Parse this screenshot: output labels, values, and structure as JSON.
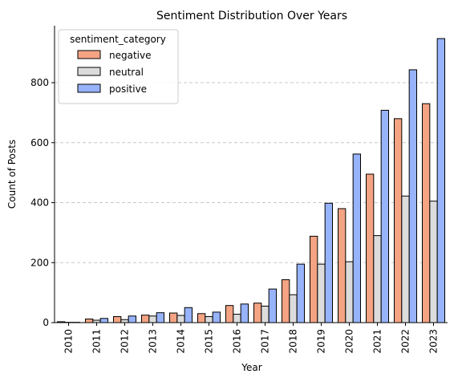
{
  "chart_data": {
    "type": "bar",
    "title": "Sentiment Distribution Over Years",
    "xlabel": "Year",
    "ylabel": "Count of Posts",
    "categories": [
      "2010",
      "2011",
      "2012",
      "2013",
      "2014",
      "2015",
      "2016",
      "2017",
      "2018",
      "2019",
      "2020",
      "2021",
      "2022",
      "2023"
    ],
    "ylim": [
      0,
      990
    ],
    "yticks": [
      0,
      200,
      400,
      600,
      800
    ],
    "grid": "horizontal-dashed",
    "legend": {
      "title": "sentiment_category",
      "placement": "top-left"
    },
    "series": [
      {
        "name": "negative",
        "color": "#f4a383",
        "values": [
          3,
          12,
          20,
          25,
          32,
          30,
          57,
          65,
          143,
          288,
          380,
          495,
          680,
          730
        ]
      },
      {
        "name": "neutral",
        "color": "#dcdcdc",
        "values": [
          1,
          8,
          10,
          22,
          24,
          20,
          28,
          55,
          93,
          195,
          203,
          290,
          422,
          405
        ]
      },
      {
        "name": "positive",
        "color": "#97b3fb",
        "values": [
          1,
          14,
          22,
          33,
          50,
          35,
          62,
          112,
          195,
          398,
          562,
          708,
          843,
          947
        ]
      }
    ]
  }
}
